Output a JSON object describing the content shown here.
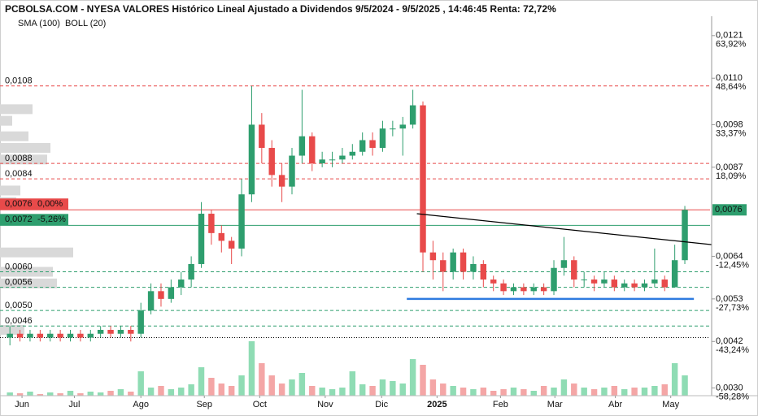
{
  "chart_data": {
    "type": "candlestick",
    "title": "PCBOLSA.COM - NYESA VALORES Histórico Lineal Ajustado a Dividendos 9/5/2024 - 9/5/2025 , 14:46:45 Renta: 72,72%",
    "indicators": [
      {
        "name": "SMA (100)",
        "color": "#7ec8f0"
      },
      {
        "name": "BOLL (20)",
        "color": "#bbbbbb"
      }
    ],
    "up_color": "#2e9e6e",
    "down_color": "#e84a4a",
    "volume_up_color": "#8fdcb4",
    "volume_down_color": "#f4a6a6",
    "xlim": [
      0,
      70
    ],
    "xticks": [
      {
        "value": 1.7,
        "label": "Jun"
      },
      {
        "value": 6.9,
        "label": "Jul"
      },
      {
        "value": 13.5,
        "label": "Ago"
      },
      {
        "value": 19.8,
        "label": "Sep"
      },
      {
        "value": 25.3,
        "label": "Oct"
      },
      {
        "value": 31.8,
        "label": "Nov"
      },
      {
        "value": 37.4,
        "label": "Dic"
      },
      {
        "value": 42.9,
        "label": "2025"
      },
      {
        "value": 49.2,
        "label": "Feb"
      },
      {
        "value": 54.6,
        "label": "Mar"
      },
      {
        "value": 60.6,
        "label": "Abr"
      },
      {
        "value": 66.1,
        "label": "May"
      }
    ],
    "ylim": [
      0.0028,
      0.0126
    ],
    "yticks": [
      {
        "value": 0.0121,
        "label": "0,0121",
        "change": {
          "value": 63.92,
          "label": "63,92%"
        }
      },
      {
        "value": 0.011,
        "label": "0,0110",
        "change": {
          "value": 48.64,
          "label": "48,64%"
        }
      },
      {
        "value": 0.0098,
        "label": "0,0098",
        "change": {
          "value": 33.37,
          "label": "33,37%"
        }
      },
      {
        "value": 0.0087,
        "label": "0,0087",
        "change": {
          "value": 18.09,
          "label": "18,09%"
        }
      },
      {
        "value": 0.0064,
        "label": "0,0064",
        "change": {
          "value": -12.45,
          "label": "-12,45%"
        }
      },
      {
        "value": 0.0053,
        "label": "0,0053",
        "change": {
          "value": -27.73,
          "label": "-27,73%"
        }
      },
      {
        "value": 0.0042,
        "label": "0,0042",
        "change": {
          "value": -43.24,
          "label": "-43,24%"
        }
      },
      {
        "value": 0.003,
        "label": "0,0030",
        "change": {
          "value": -58.28,
          "label": "-58,28%"
        }
      }
    ],
    "last_price": {
      "value": 0.0076,
      "label": "0,0076",
      "color": "#2e9e6e"
    },
    "levels": [
      {
        "value": 0.0108,
        "label": "0,0108",
        "color": "#e84a4a",
        "style": "dashed"
      },
      {
        "value": 0.0088,
        "label": "0,0088",
        "color": "#e84a4a",
        "style": "dashed"
      },
      {
        "value": 0.0084,
        "label": "0,0084",
        "color": "#e84a4a",
        "style": "dashed"
      },
      {
        "value": 0.0076,
        "label": "0,0076",
        "change": "0,00%",
        "color": "#e84a4a",
        "style": "solid"
      },
      {
        "value": 0.0072,
        "label": "0,0072",
        "change": "-5,26%",
        "color": "#2e9e6e",
        "style": "solid"
      },
      {
        "value": 0.006,
        "label": "0,0060",
        "color": "#2e9e6e",
        "style": "dashed"
      },
      {
        "value": 0.0056,
        "label": "0,0056",
        "color": "#2e9e6e",
        "style": "dashed"
      },
      {
        "value": 0.005,
        "label": "0,0050",
        "color": "#2e9e6e",
        "style": "dashed"
      },
      {
        "value": 0.0046,
        "label": "0,0046",
        "color": "#2e9e6e",
        "style": "dashed"
      },
      {
        "value": 0.0043,
        "color": "#000000",
        "style": "dotted"
      }
    ],
    "trendlines": [
      {
        "x": [
          40.9,
          70.2
        ],
        "y": [
          0.0075,
          0.0067
        ],
        "color": "#000000"
      },
      {
        "x": [
          39.9,
          68.4
        ],
        "y": [
          0.0053,
          0.0053
        ],
        "color": "#2f7be0"
      }
    ],
    "open": [
      0.0043,
      0.0044,
      0.0043,
      0.0044,
      0.0043,
      0.0044,
      0.0043,
      0.0044,
      0.0043,
      0.0044,
      0.0045,
      0.0044,
      0.0045,
      0.0044,
      0.005,
      0.0055,
      0.0053,
      0.0056,
      0.0058,
      0.0062,
      0.0075,
      0.007,
      0.0068,
      0.0066,
      0.008,
      0.0098,
      0.0092,
      0.0085,
      0.0082,
      0.009,
      0.0095,
      0.0088,
      0.0089,
      0.0089,
      0.009,
      0.0091,
      0.0094,
      0.0092,
      0.0097,
      0.0097,
      0.0098,
      0.0103,
      0.0065,
      0.0063,
      0.006,
      0.0065,
      0.006,
      0.0062,
      0.0058,
      0.0057,
      0.0055,
      0.0056,
      0.0055,
      0.0056,
      0.0055,
      0.0061,
      0.0063,
      0.0058,
      0.0058,
      0.0057,
      0.0058,
      0.0056,
      0.0057,
      0.0056,
      0.0057,
      0.0058,
      0.0056,
      0.0063
    ],
    "high": [
      0.0046,
      0.0045,
      0.0045,
      0.0045,
      0.0045,
      0.0045,
      0.0045,
      0.0045,
      0.0045,
      0.0046,
      0.0046,
      0.0046,
      0.0046,
      0.0052,
      0.0057,
      0.0057,
      0.0058,
      0.006,
      0.0064,
      0.0078,
      0.0076,
      0.0072,
      0.0069,
      0.0084,
      0.0108,
      0.0101,
      0.0094,
      0.0088,
      0.0092,
      0.0107,
      0.0096,
      0.0091,
      0.0091,
      0.0092,
      0.0093,
      0.0096,
      0.0096,
      0.0099,
      0.0099,
      0.01,
      0.0107,
      0.0104,
      0.0068,
      0.0065,
      0.0066,
      0.0066,
      0.0064,
      0.0063,
      0.0059,
      0.0058,
      0.0057,
      0.0057,
      0.0057,
      0.0057,
      0.0063,
      0.0069,
      0.0064,
      0.006,
      0.0059,
      0.006,
      0.0059,
      0.0058,
      0.0058,
      0.0058,
      0.0066,
      0.0059,
      0.0067,
      0.0077
    ],
    "low": [
      0.0041,
      0.0042,
      0.0042,
      0.0042,
      0.0042,
      0.0042,
      0.0042,
      0.0042,
      0.0042,
      0.0043,
      0.0043,
      0.0043,
      0.0042,
      0.0043,
      0.0049,
      0.0051,
      0.0052,
      0.0054,
      0.0056,
      0.0061,
      0.0067,
      0.0065,
      0.0062,
      0.0064,
      0.0078,
      0.0088,
      0.0082,
      0.0078,
      0.008,
      0.0088,
      0.0086,
      0.0087,
      0.0087,
      0.0088,
      0.0089,
      0.009,
      0.009,
      0.0091,
      0.0095,
      0.009,
      0.0097,
      0.006,
      0.0058,
      0.0055,
      0.0058,
      0.0058,
      0.0058,
      0.0056,
      0.0055,
      0.0054,
      0.0054,
      0.0054,
      0.0054,
      0.0054,
      0.0054,
      0.0059,
      0.0056,
      0.0056,
      0.0055,
      0.0056,
      0.0055,
      0.0055,
      0.0055,
      0.0055,
      0.0056,
      0.0055,
      0.0056,
      0.0062
    ],
    "close": [
      0.0044,
      0.0043,
      0.0044,
      0.0043,
      0.0044,
      0.0043,
      0.0044,
      0.0043,
      0.0044,
      0.0045,
      0.0044,
      0.0045,
      0.0044,
      0.005,
      0.0055,
      0.0053,
      0.0056,
      0.0058,
      0.0062,
      0.0075,
      0.007,
      0.0068,
      0.0066,
      0.008,
      0.0098,
      0.0092,
      0.0085,
      0.0082,
      0.009,
      0.0095,
      0.0088,
      0.0089,
      0.0089,
      0.009,
      0.0091,
      0.0094,
      0.0092,
      0.0097,
      0.0097,
      0.0098,
      0.0103,
      0.0065,
      0.0063,
      0.006,
      0.0065,
      0.006,
      0.0062,
      0.0058,
      0.0057,
      0.0055,
      0.0056,
      0.0055,
      0.0056,
      0.0055,
      0.0061,
      0.0063,
      0.0058,
      0.0058,
      0.0057,
      0.0058,
      0.0056,
      0.0057,
      0.0056,
      0.0057,
      0.0058,
      0.0056,
      0.0063,
      0.0076
    ],
    "volume": [
      4,
      3,
      5,
      2,
      4,
      3,
      6,
      3,
      5,
      4,
      6,
      8,
      5,
      30,
      10,
      12,
      8,
      10,
      14,
      35,
      22,
      15,
      12,
      25,
      67,
      40,
      25,
      15,
      20,
      28,
      12,
      10,
      8,
      10,
      30,
      14,
      12,
      20,
      18,
      15,
      45,
      38,
      20,
      15,
      12,
      10,
      8,
      10,
      6,
      8,
      10,
      8,
      6,
      12,
      10,
      20,
      15,
      10,
      8,
      10,
      12,
      8,
      10,
      10,
      12,
      14,
      40,
      25
    ],
    "volume_lim": [
      0,
      100
    ],
    "volume_profile": {
      "color": "#d9d9d9",
      "prices": [
        0.0102,
        0.0099,
        0.0095,
        0.0092,
        0.0089,
        0.0081,
        0.0078,
        0.0065,
        0.006,
        0.0057,
        0.0045
      ],
      "values": [
        40,
        15,
        35,
        62,
        58,
        25,
        20,
        90,
        65,
        70,
        30
      ]
    }
  }
}
